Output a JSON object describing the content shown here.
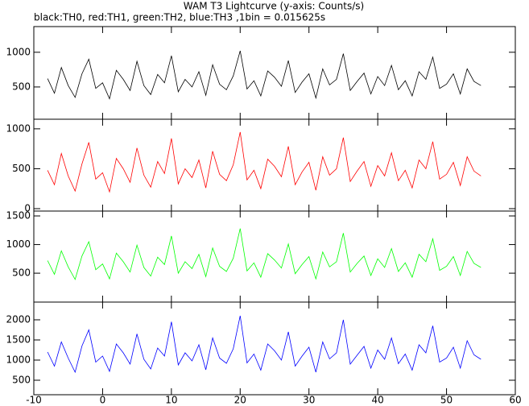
{
  "chart_data": {
    "type": "line",
    "title": "WAM T3 Lightcurve (y-axis: Counts/s)",
    "subtitle": "black:TH0, red:TH1, green:TH2, blue:TH3 ,1bin = 0.015625s",
    "x": [
      -8,
      -7,
      -6,
      -5,
      -4,
      -3,
      -2,
      -1,
      0,
      1,
      2,
      3,
      4,
      5,
      6,
      7,
      8,
      9,
      10,
      11,
      12,
      13,
      14,
      15,
      16,
      17,
      18,
      19,
      20,
      21,
      22,
      23,
      24,
      25,
      26,
      27,
      28,
      29,
      30,
      31,
      32,
      33,
      34,
      35,
      36,
      37,
      38,
      39,
      40,
      41,
      42,
      43,
      44,
      45,
      46,
      47,
      48,
      49,
      50,
      51,
      52,
      53,
      54,
      55
    ],
    "xlim": [
      -10,
      60
    ],
    "xticks": [
      -10,
      0,
      10,
      20,
      30,
      40,
      50,
      60
    ],
    "panels": [
      {
        "color": "#000000",
        "ylim": [
          35,
          1370
        ],
        "yticks": [
          500,
          1000
        ],
        "values": [
          620,
          410,
          780,
          520,
          350,
          690,
          900,
          480,
          560,
          330,
          740,
          610,
          450,
          870,
          520,
          390,
          680,
          560,
          950,
          430,
          610,
          500,
          720,
          380,
          820,
          540,
          460,
          660,
          1020,
          470,
          590,
          370,
          730,
          640,
          510,
          880,
          420,
          570,
          690,
          340,
          760,
          530,
          610,
          980,
          450,
          580,
          700,
          400,
          650,
          520,
          810,
          460,
          590,
          370,
          720,
          610,
          930,
          480,
          540,
          690,
          400,
          760,
          580,
          520
        ]
      },
      {
        "color": "#ff0000",
        "ylim": [
          -30,
          1120
        ],
        "yticks": [
          0,
          500,
          1000
        ],
        "values": [
          480,
          300,
          690,
          410,
          220,
          560,
          830,
          370,
          450,
          210,
          630,
          500,
          330,
          760,
          420,
          270,
          590,
          440,
          880,
          310,
          500,
          390,
          610,
          260,
          720,
          430,
          350,
          550,
          960,
          360,
          480,
          250,
          620,
          530,
          400,
          780,
          300,
          460,
          580,
          230,
          650,
          420,
          500,
          890,
          340,
          470,
          590,
          280,
          540,
          410,
          700,
          350,
          480,
          260,
          610,
          500,
          840,
          370,
          430,
          580,
          290,
          650,
          470,
          410
        ]
      },
      {
        "color": "#00ff00",
        "ylim": [
          -5,
          1585
        ],
        "yticks": [
          500,
          1000,
          1500
        ],
        "values": [
          720,
          480,
          890,
          610,
          390,
          800,
          1050,
          560,
          660,
          400,
          850,
          700,
          520,
          990,
          600,
          450,
          780,
          650,
          1150,
          500,
          700,
          580,
          830,
          440,
          940,
          620,
          530,
          760,
          1280,
          540,
          680,
          430,
          840,
          730,
          590,
          1010,
          490,
          650,
          790,
          400,
          870,
          610,
          700,
          1200,
          520,
          670,
          800,
          460,
          750,
          600,
          930,
          530,
          680,
          430,
          830,
          700,
          1100,
          550,
          620,
          790,
          460,
          880,
          670,
          600
        ]
      },
      {
        "color": "#0000ff",
        "ylim": [
          140,
          2440
        ],
        "yticks": [
          500,
          1000,
          1500,
          2000
        ],
        "values": [
          1200,
          850,
          1450,
          1050,
          700,
          1350,
          1750,
          950,
          1100,
          720,
          1400,
          1180,
          900,
          1650,
          1020,
          780,
          1300,
          1100,
          1950,
          880,
          1180,
          980,
          1380,
          760,
          1550,
          1050,
          920,
          1280,
          2100,
          930,
          1150,
          750,
          1400,
          1230,
          1000,
          1700,
          850,
          1100,
          1320,
          700,
          1450,
          1030,
          1180,
          2000,
          900,
          1120,
          1340,
          800,
          1250,
          1020,
          1550,
          910,
          1150,
          750,
          1380,
          1180,
          1850,
          950,
          1050,
          1320,
          800,
          1480,
          1130,
          1020
        ]
      }
    ]
  }
}
